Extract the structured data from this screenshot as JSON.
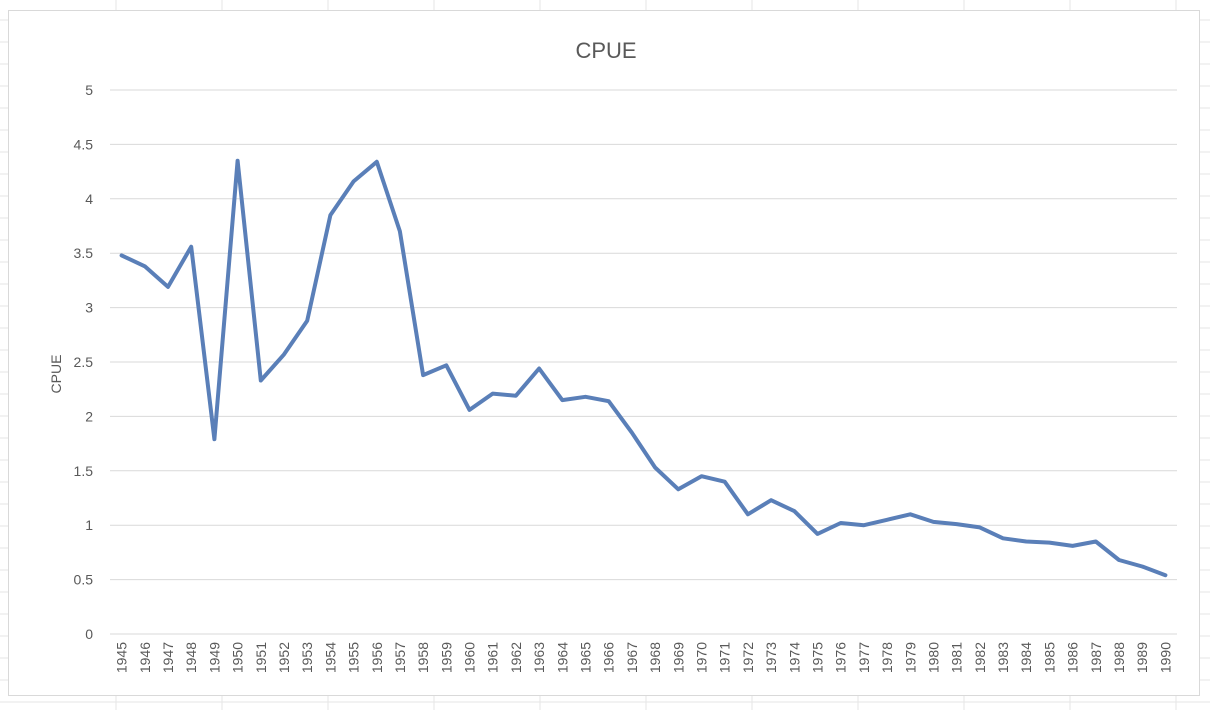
{
  "chart_data": {
    "type": "line",
    "title": "CPUE",
    "ylabel": "CPUE",
    "xlabel": "",
    "ylim": [
      0,
      5
    ],
    "yticks": [
      "0",
      "0.5",
      "1",
      "1.5",
      "2",
      "2.5",
      "3",
      "3.5",
      "4",
      "4.5",
      "5"
    ],
    "grid": true,
    "legend": "none",
    "categories": [
      "1945",
      "1946",
      "1947",
      "1948",
      "1949",
      "1950",
      "1951",
      "1952",
      "1953",
      "1954",
      "1955",
      "1956",
      "1957",
      "1958",
      "1959",
      "1960",
      "1961",
      "1962",
      "1963",
      "1964",
      "1965",
      "1966",
      "1967",
      "1968",
      "1969",
      "1970",
      "1971",
      "1972",
      "1973",
      "1974",
      "1975",
      "1976",
      "1977",
      "1978",
      "1979",
      "1980",
      "1981",
      "1982",
      "1983",
      "1984",
      "1985",
      "1986",
      "1987",
      "1988",
      "1989",
      "1990"
    ],
    "series": [
      {
        "color": "#5a7fb8",
        "values": [
          3.48,
          3.38,
          3.19,
          3.56,
          1.79,
          4.35,
          2.33,
          2.57,
          2.88,
          3.85,
          4.16,
          4.34,
          3.7,
          2.38,
          2.47,
          2.06,
          2.21,
          2.19,
          2.44,
          2.15,
          2.18,
          2.14,
          1.85,
          1.53,
          1.33,
          1.45,
          1.4,
          1.1,
          1.23,
          1.13,
          0.92,
          1.02,
          1.0,
          1.05,
          1.1,
          1.03,
          1.01,
          0.98,
          0.88,
          0.85,
          0.84,
          0.81,
          0.85,
          0.68,
          0.62,
          0.54
        ]
      }
    ]
  },
  "colors": {
    "gridline": "#d9d9d9",
    "text": "#595959",
    "line": "#5a7fb8"
  }
}
